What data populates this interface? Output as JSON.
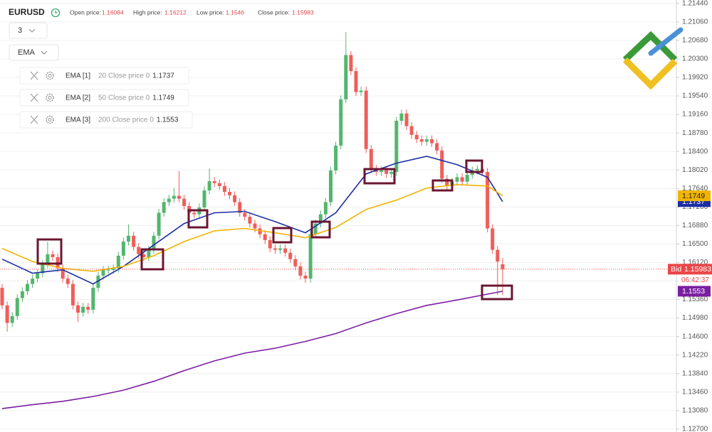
{
  "chart_data": {
    "type": "candlestick",
    "symbol": "EURUSD",
    "interval": "3",
    "indicator_menu": "EMA",
    "header": {
      "open_label": "Open price:",
      "high_label": "High price:",
      "low_label": "Low price:",
      "close_label": "Close price:"
    },
    "open": [
      1.156,
      1.1524,
      1.1488,
      1.1502,
      1.1539,
      1.1553,
      1.1568,
      1.1579,
      1.159,
      1.1609,
      1.1629,
      1.1623,
      1.16,
      1.1579,
      1.1568,
      1.1524,
      1.1509,
      1.1521,
      1.1515,
      1.156,
      1.1585,
      1.1597,
      1.1597,
      1.16,
      1.1626,
      1.1655,
      1.1667,
      1.1644,
      1.1629,
      1.1623,
      1.1638,
      1.1667,
      1.1714,
      1.1736,
      1.1743,
      1.1749,
      1.1743,
      1.1728,
      1.1714,
      1.1711,
      1.1725,
      1.176,
      1.1779,
      1.1775,
      1.1769,
      1.1757,
      1.175,
      1.1736,
      1.1714,
      1.1706,
      1.1692,
      1.1682,
      1.167,
      1.1658,
      1.1641,
      1.1638,
      1.1641,
      1.1632,
      1.1619,
      1.1604,
      1.1585,
      1.1579,
      1.167,
      1.1692,
      1.1711,
      1.1736,
      1.1801,
      1.1852,
      1.1947,
      1.2038,
      1.2005,
      1.1962,
      1.1965,
      1.1845,
      1.1804,
      1.1798,
      1.1801,
      1.1794,
      1.1798,
      1.1903,
      1.1918,
      1.1892,
      1.1874,
      1.1865,
      1.186,
      1.1865,
      1.1857,
      1.1842,
      1.1784,
      1.1769,
      1.1778,
      1.1787,
      1.1778,
      1.1792,
      1.1801,
      1.1804,
      1.1798,
      1.1682,
      1.1638,
      1.16084
    ],
    "high": [
      1.1568,
      1.1532,
      1.151,
      1.1547,
      1.1561,
      1.1576,
      1.1587,
      1.1598,
      1.1617,
      1.1655,
      1.1637,
      1.1631,
      1.1608,
      1.1587,
      1.1576,
      1.1532,
      1.1529,
      1.1529,
      1.1568,
      1.1593,
      1.1605,
      1.1605,
      1.1608,
      1.1634,
      1.1663,
      1.169,
      1.1675,
      1.1652,
      1.1637,
      1.1646,
      1.1675,
      1.1722,
      1.1744,
      1.1751,
      1.1765,
      1.18,
      1.1751,
      1.1736,
      1.1722,
      1.1733,
      1.1768,
      1.1805,
      1.1787,
      1.1783,
      1.1777,
      1.1765,
      1.1758,
      1.1744,
      1.1722,
      1.1714,
      1.17,
      1.169,
      1.1678,
      1.1666,
      1.1649,
      1.1649,
      1.1649,
      1.164,
      1.1627,
      1.1612,
      1.1593,
      1.1678,
      1.17,
      1.1719,
      1.1744,
      1.1809,
      1.186,
      1.1955,
      1.2085,
      1.2046,
      1.2013,
      1.1973,
      1.1973,
      1.1853,
      1.1812,
      1.1809,
      1.1809,
      1.1806,
      1.1911,
      1.1926,
      1.1926,
      1.19,
      1.1882,
      1.1873,
      1.1873,
      1.1873,
      1.1865,
      1.185,
      1.1792,
      1.1786,
      1.1795,
      1.1795,
      1.18,
      1.1809,
      1.1812,
      1.1812,
      1.1806,
      1.169,
      1.1646,
      1.16212
    ],
    "low": [
      1.1516,
      1.147,
      1.148,
      1.1494,
      1.1531,
      1.1545,
      1.156,
      1.1571,
      1.1582,
      1.1601,
      1.1615,
      1.1592,
      1.1571,
      1.156,
      1.1516,
      1.149,
      1.1501,
      1.1507,
      1.1507,
      1.1552,
      1.1577,
      1.1589,
      1.1589,
      1.1592,
      1.1618,
      1.1647,
      1.1636,
      1.1621,
      1.1615,
      1.1615,
      1.163,
      1.1659,
      1.1706,
      1.1728,
      1.1735,
      1.1735,
      1.172,
      1.1706,
      1.1703,
      1.1703,
      1.1717,
      1.1752,
      1.1767,
      1.1761,
      1.1749,
      1.1742,
      1.1728,
      1.1706,
      1.1698,
      1.1684,
      1.1674,
      1.1662,
      1.165,
      1.1633,
      1.163,
      1.163,
      1.1624,
      1.1611,
      1.1596,
      1.1577,
      1.157,
      1.1571,
      1.1662,
      1.1684,
      1.1703,
      1.1728,
      1.1793,
      1.1844,
      1.1939,
      1.1997,
      1.1954,
      1.1954,
      1.1837,
      1.1796,
      1.179,
      1.179,
      1.1786,
      1.1786,
      1.179,
      1.1895,
      1.1884,
      1.1866,
      1.1857,
      1.1852,
      1.1852,
      1.1849,
      1.1834,
      1.1776,
      1.1761,
      1.1761,
      1.177,
      1.177,
      1.177,
      1.1784,
      1.1793,
      1.179,
      1.1674,
      1.163,
      1.1545,
      1.1546
    ],
    "close": [
      1.1524,
      1.1488,
      1.1502,
      1.1539,
      1.1553,
      1.1568,
      1.1579,
      1.159,
      1.1609,
      1.1629,
      1.1623,
      1.16,
      1.1579,
      1.1568,
      1.1524,
      1.1509,
      1.1521,
      1.1515,
      1.156,
      1.1585,
      1.1597,
      1.1597,
      1.16,
      1.1626,
      1.1655,
      1.1667,
      1.1644,
      1.1629,
      1.1623,
      1.1638,
      1.1667,
      1.1714,
      1.1736,
      1.1743,
      1.1749,
      1.1743,
      1.1728,
      1.1714,
      1.1711,
      1.1725,
      1.176,
      1.1779,
      1.1775,
      1.1769,
      1.1757,
      1.175,
      1.1736,
      1.1714,
      1.1706,
      1.1692,
      1.1682,
      1.167,
      1.1658,
      1.1641,
      1.1638,
      1.1641,
      1.1632,
      1.1619,
      1.1604,
      1.1585,
      1.1579,
      1.167,
      1.1692,
      1.1711,
      1.1736,
      1.1801,
      1.1852,
      1.1947,
      1.2038,
      1.2005,
      1.1962,
      1.1965,
      1.1845,
      1.1804,
      1.1798,
      1.1801,
      1.1794,
      1.1798,
      1.1903,
      1.1918,
      1.1892,
      1.1874,
      1.1865,
      1.186,
      1.1865,
      1.1857,
      1.1842,
      1.1784,
      1.1769,
      1.1778,
      1.1787,
      1.1778,
      1.1792,
      1.1801,
      1.1804,
      1.1798,
      1.1682,
      1.1638,
      1.1614,
      1.15983
    ],
    "up_color": "#53b66e",
    "down_color": "#ef5e5a",
    "series": [
      {
        "name": "EMA [1]",
        "params": "20 Close price 0",
        "color": "#1c2ea3",
        "x": [
          0,
          6,
          12,
          18,
          24,
          30,
          36,
          42,
          48,
          54,
          60,
          66,
          72,
          78,
          84,
          90,
          96,
          99
        ],
        "values": [
          1.1619,
          1.159,
          1.1597,
          1.1568,
          1.1604,
          1.1648,
          1.1692,
          1.1714,
          1.1717,
          1.1696,
          1.1673,
          1.1714,
          1.1794,
          1.1816,
          1.183,
          1.1813,
          1.1787,
          1.1737
        ]
      },
      {
        "name": "EMA [2]",
        "params": "50 Close price 0",
        "color": "#f0b400",
        "x": [
          0,
          6,
          12,
          18,
          24,
          30,
          36,
          42,
          48,
          54,
          60,
          66,
          72,
          78,
          84,
          90,
          96,
          99
        ],
        "values": [
          1.1641,
          1.1614,
          1.16,
          1.1594,
          1.1604,
          1.1626,
          1.1655,
          1.1677,
          1.1682,
          1.1673,
          1.1663,
          1.1684,
          1.1721,
          1.174,
          1.1765,
          1.1772,
          1.1769,
          1.1749
        ]
      },
      {
        "name": "EMA [3]",
        "params": "200 Close price 0",
        "color": "#7b1fa2",
        "x": [
          0,
          6,
          12,
          18,
          24,
          30,
          36,
          42,
          48,
          54,
          60,
          66,
          72,
          78,
          84,
          90,
          96,
          99
        ],
        "values": [
          1.1312,
          1.132,
          1.1327,
          1.1337,
          1.135,
          1.1368,
          1.139,
          1.141,
          1.1426,
          1.1436,
          1.145,
          1.1466,
          1.1488,
          1.1507,
          1.1524,
          1.1535,
          1.1547,
          1.1553
        ]
      }
    ],
    "bid_label": "Bid",
    "bid_color": "#e9474a",
    "countdown": "06:42:37",
    "ylim": [
      1.1264,
      1.2151
    ],
    "yticks": [
      {
        "value": 1.2144,
        "label": "1.21440"
      },
      {
        "value": 1.2106,
        "label": "1.21060"
      },
      {
        "value": 1.2068,
        "label": "1.20680"
      },
      {
        "value": 1.203,
        "label": "1.20300"
      },
      {
        "value": 1.1992,
        "label": "1.19920"
      },
      {
        "value": 1.1954,
        "label": "1.19540"
      },
      {
        "value": 1.1916,
        "label": "1.19160"
      },
      {
        "value": 1.1878,
        "label": "1.18780"
      },
      {
        "value": 1.184,
        "label": "1.18400"
      },
      {
        "value": 1.1802,
        "label": "1.18020"
      },
      {
        "value": 1.1764,
        "label": "1.17640"
      },
      {
        "value": 1.1726,
        "label": "1.17260"
      },
      {
        "value": 1.1688,
        "label": "1.16880"
      },
      {
        "value": 1.165,
        "label": "1.16500"
      },
      {
        "value": 1.1612,
        "label": "1.16120"
      },
      {
        "value": 1.1574,
        "label": "1.15740"
      },
      {
        "value": 1.1536,
        "label": "1.15360"
      },
      {
        "value": 1.1498,
        "label": "1.14980"
      },
      {
        "value": 1.146,
        "label": "1.14600"
      },
      {
        "value": 1.1422,
        "label": "1.14220"
      },
      {
        "value": 1.1384,
        "label": "1.13840"
      },
      {
        "value": 1.1346,
        "label": "1.13460"
      },
      {
        "value": 1.1308,
        "label": "1.13080"
      },
      {
        "value": 1.127,
        "label": "1.12700"
      }
    ],
    "grid": true
  }
}
